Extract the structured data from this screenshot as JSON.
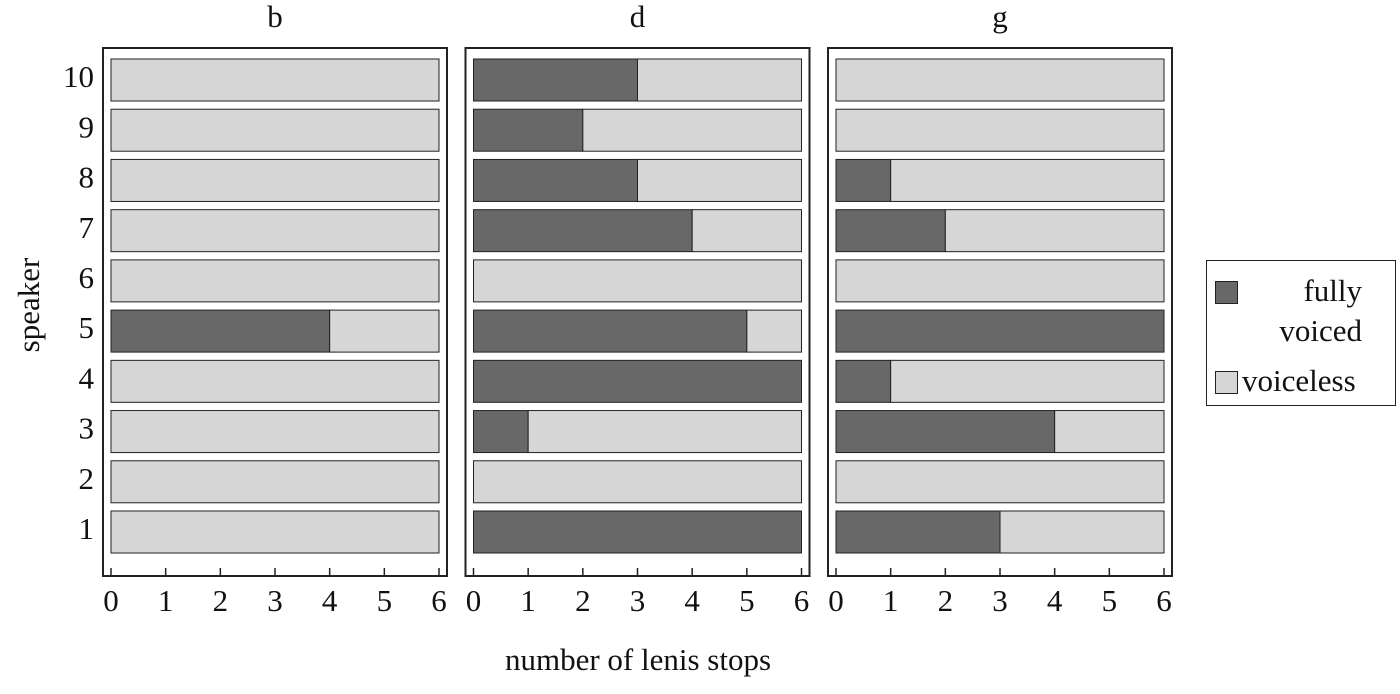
{
  "chart_data": [
    {
      "type": "bar",
      "orientation": "horizontal",
      "stacked": true,
      "title": "b",
      "y_label": "speaker",
      "categories": [
        "1",
        "2",
        "3",
        "4",
        "5",
        "6",
        "7",
        "8",
        "9",
        "10"
      ],
      "series": [
        {
          "name": "fully voiced",
          "color": "#686868",
          "values": [
            0,
            0,
            0,
            0,
            4,
            0,
            0,
            0,
            0,
            0
          ]
        },
        {
          "name": "voiceless",
          "color": "#d6d6d6",
          "values": [
            6,
            6,
            6,
            6,
            2,
            6,
            6,
            6,
            6,
            6
          ]
        }
      ],
      "xlim": [
        0,
        6
      ],
      "xticks": [
        0,
        1,
        2,
        3,
        4,
        5,
        6
      ]
    },
    {
      "type": "bar",
      "orientation": "horizontal",
      "stacked": true,
      "title": "d",
      "x_label": "number of lenis stops",
      "series": [
        {
          "name": "fully voiced",
          "color": "#686868",
          "values": [
            6,
            0,
            1,
            6,
            5,
            0,
            4,
            3,
            2,
            3
          ]
        },
        {
          "name": "voiceless",
          "color": "#d6d6d6",
          "values": [
            0,
            6,
            5,
            0,
            1,
            6,
            2,
            3,
            4,
            3
          ]
        }
      ],
      "xlim": [
        0,
        6
      ],
      "xticks": [
        0,
        1,
        2,
        3,
        4,
        5,
        6
      ]
    },
    {
      "type": "bar",
      "orientation": "horizontal",
      "stacked": true,
      "title": "g",
      "series": [
        {
          "name": "fully voiced",
          "color": "#686868",
          "values": [
            3,
            0,
            4,
            1,
            6,
            0,
            2,
            1,
            0,
            0
          ]
        },
        {
          "name": "voiceless",
          "color": "#d6d6d6",
          "values": [
            3,
            6,
            2,
            5,
            0,
            6,
            4,
            5,
            6,
            6
          ]
        }
      ],
      "xlim": [
        0,
        6
      ],
      "xticks": [
        0,
        1,
        2,
        3,
        4,
        5,
        6
      ]
    }
  ]
}
